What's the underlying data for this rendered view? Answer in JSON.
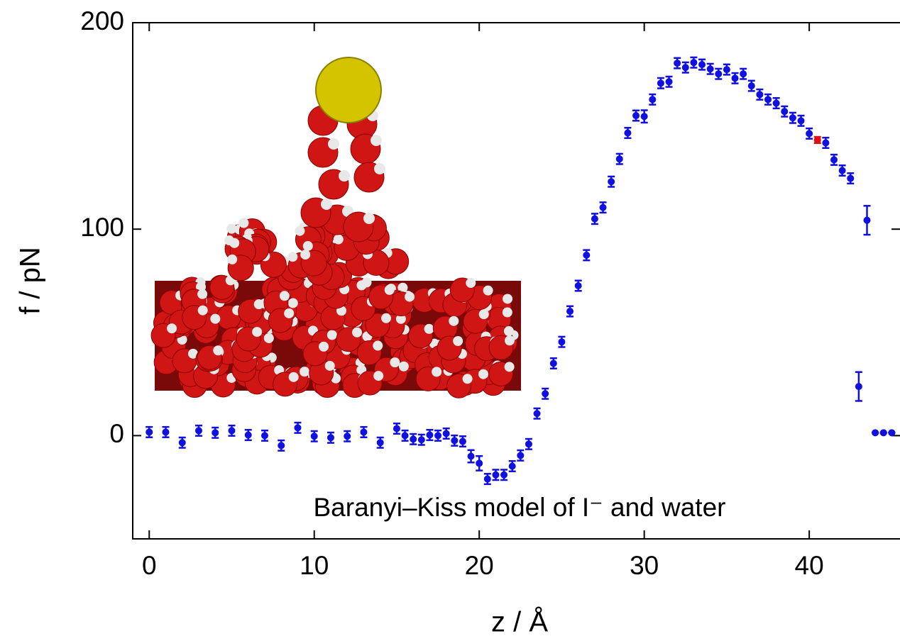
{
  "chart_data": {
    "type": "scatter",
    "annotation": "Baranyi–Kiss model of I⁻ and water",
    "x_label": "z / Å",
    "y_label": "f / pN",
    "xlim": [
      -1,
      45.5
    ],
    "xticks": [
      0,
      10,
      20,
      30,
      40
    ],
    "ylim": [
      -50,
      200
    ],
    "yticks": [
      0,
      100,
      200
    ],
    "series": [
      {
        "color": "#1010e0",
        "x": [
          0,
          1,
          2,
          3,
          4,
          5,
          6,
          7,
          8,
          9,
          10,
          11,
          12,
          13,
          14,
          15,
          15.5,
          16,
          16.5,
          17,
          17.5,
          18,
          18.5,
          19,
          19.5,
          20,
          20.5,
          21,
          21.5,
          22,
          22.5,
          23,
          23.5,
          24,
          24.5,
          25,
          25.5,
          26,
          26.5,
          27,
          27.5,
          28,
          28.5,
          29,
          29.5,
          30,
          30.5,
          31,
          31.5,
          32,
          32.5,
          33,
          33.5,
          34,
          34.5,
          35,
          35.5,
          36,
          36.5,
          37,
          37.5,
          38,
          38.5,
          39,
          39.5,
          40,
          41,
          41.5,
          42,
          42.5,
          43,
          43.5,
          44,
          44.5,
          45
        ],
        "values": [
          1.7,
          1.7,
          -3.4,
          2.4,
          1.4,
          2.4,
          0.3,
          0,
          -4.8,
          3.8,
          -0.3,
          -1,
          -0.3,
          1.7,
          -3.4,
          3.4,
          0,
          -1.7,
          -2,
          0.3,
          0,
          1,
          -2.4,
          -2.8,
          -10,
          -13.4,
          -21,
          -19,
          -19,
          -14.8,
          -9.6,
          -4.1,
          10.7,
          20.3,
          35,
          45.4,
          60.2,
          72.6,
          87.4,
          105,
          110.5,
          123,
          134,
          146.6,
          155,
          154.6,
          162.8,
          170.7,
          171.4,
          180.4,
          178.3,
          180.7,
          179.7,
          177.6,
          175.2,
          177.3,
          173.1,
          175.2,
          169.4,
          165.2,
          162.8,
          161,
          157,
          153.9,
          152.5,
          146.3,
          141.8,
          133.6,
          128.4,
          124.6,
          23.8,
          104.3,
          1.4,
          1.4,
          1.4
        ],
        "errors": [
          2.5,
          2.5,
          2.5,
          2.5,
          2.5,
          2.5,
          2.5,
          2.5,
          2.5,
          2.5,
          2.5,
          2.5,
          2.5,
          2.5,
          2.5,
          2.5,
          2.5,
          2.5,
          2.5,
          2.5,
          2.5,
          2.5,
          2.5,
          2.5,
          3,
          3.5,
          2.5,
          2.5,
          2.5,
          2.5,
          2.5,
          2.5,
          2.5,
          2.5,
          2.5,
          2.5,
          2.5,
          2.5,
          2.5,
          2.5,
          2.5,
          2.5,
          2.5,
          2.5,
          2.5,
          3,
          2.5,
          2.5,
          2.5,
          2.5,
          2.5,
          2.5,
          2.5,
          2.5,
          2.5,
          2.5,
          2.5,
          2.5,
          2.5,
          2.5,
          2.5,
          2.5,
          2.5,
          2.5,
          2.5,
          2.5,
          2.5,
          2.5,
          2.5,
          2.5,
          7,
          7,
          0,
          0,
          0
        ]
      },
      {
        "color": "#e01010",
        "x": [
          40.5
        ],
        "values": [
          143.2
        ],
        "errors": [
          1.5
        ]
      }
    ]
  }
}
